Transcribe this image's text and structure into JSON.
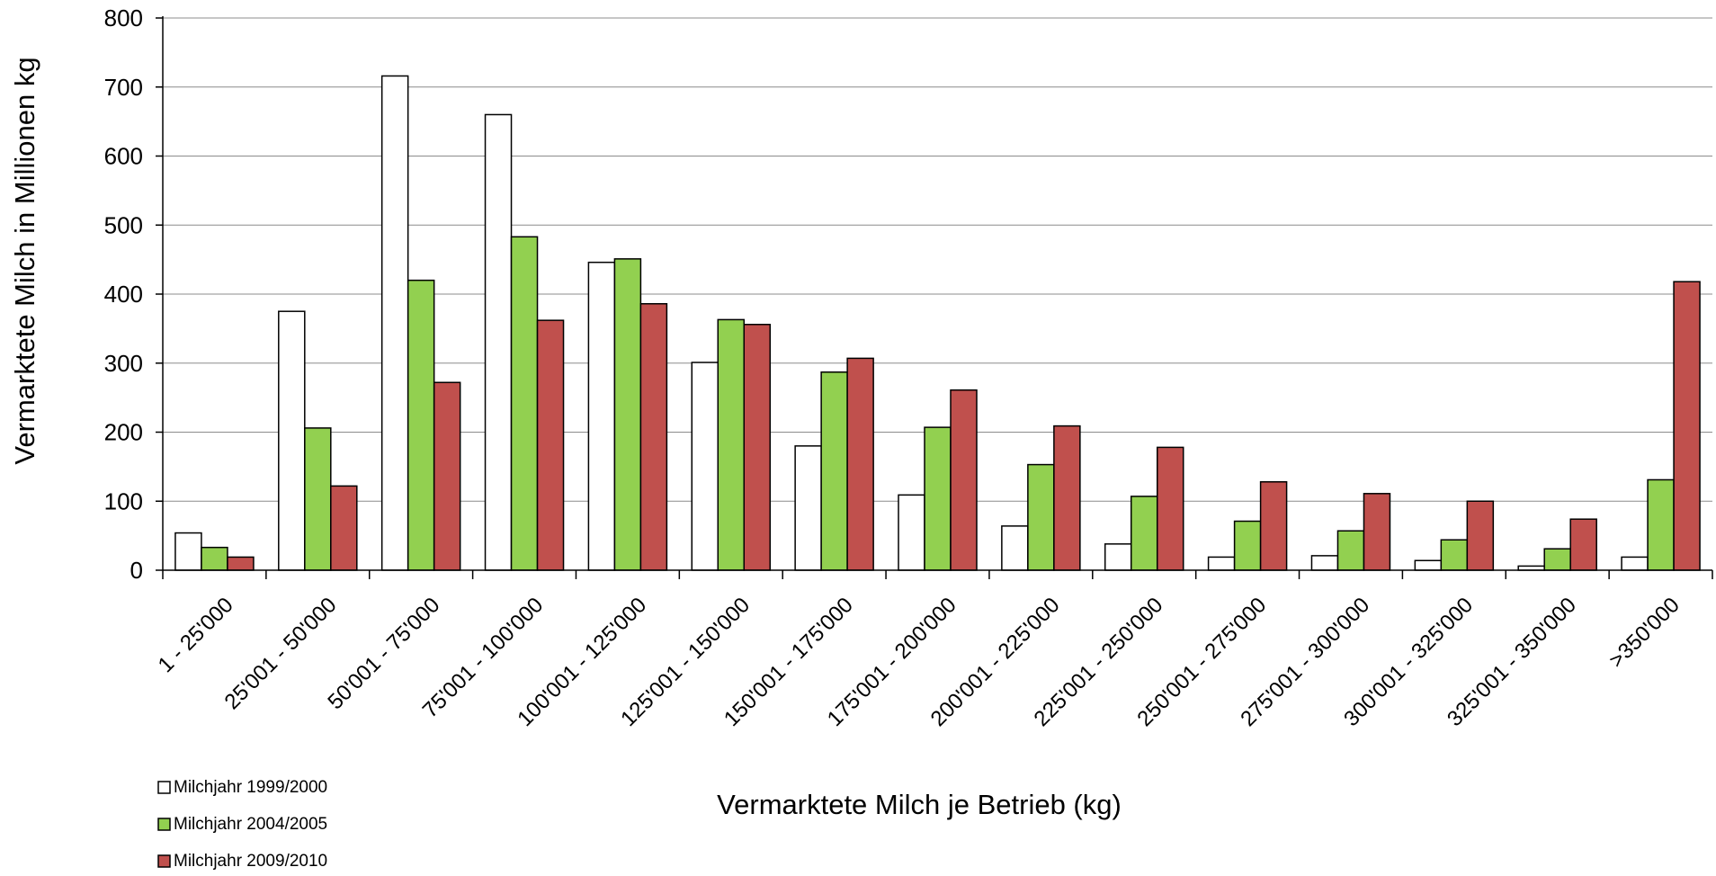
{
  "chart_data": {
    "type": "bar",
    "ylabel": "Vermarktete Milch in Millionen kg",
    "xlabel": "Vermarktete Milch je Betrieb (kg)",
    "ylim": [
      0,
      800
    ],
    "yticks": [
      "0",
      "100",
      "200",
      "300",
      "400",
      "500",
      "600",
      "700",
      "800"
    ],
    "grid": true,
    "legend_position": "bottom-left",
    "categories": [
      "1 - 25'000",
      "25'001 - 50'000",
      "50'001 - 75'000",
      "75'001 - 100'000",
      "100'001 - 125'000",
      "125'001 - 150'000",
      "150'001 - 175'000",
      "175'001 - 200'000",
      "200'001 - 225'000",
      "225'001 - 250'000",
      "250'001 - 275'000",
      "275'001 - 300'000",
      "300'001 - 325'000",
      "325'001 - 350'000",
      ">350'000"
    ],
    "series": [
      {
        "name": "Milchjahr 1999/2000",
        "color": "#ffffff",
        "values": [
          54,
          375,
          716,
          660,
          446,
          301,
          180,
          109,
          64,
          38,
          19,
          21,
          14,
          6,
          19
        ]
      },
      {
        "name": "Milchjahr 2004/2005",
        "color": "#92d050",
        "values": [
          33,
          206,
          420,
          483,
          451,
          363,
          287,
          207,
          153,
          107,
          71,
          57,
          44,
          31,
          131
        ]
      },
      {
        "name": "Milchjahr 2009/2010",
        "color": "#c0504d",
        "values": [
          19,
          122,
          272,
          362,
          386,
          356,
          307,
          261,
          209,
          178,
          128,
          111,
          100,
          74,
          418
        ]
      }
    ]
  }
}
